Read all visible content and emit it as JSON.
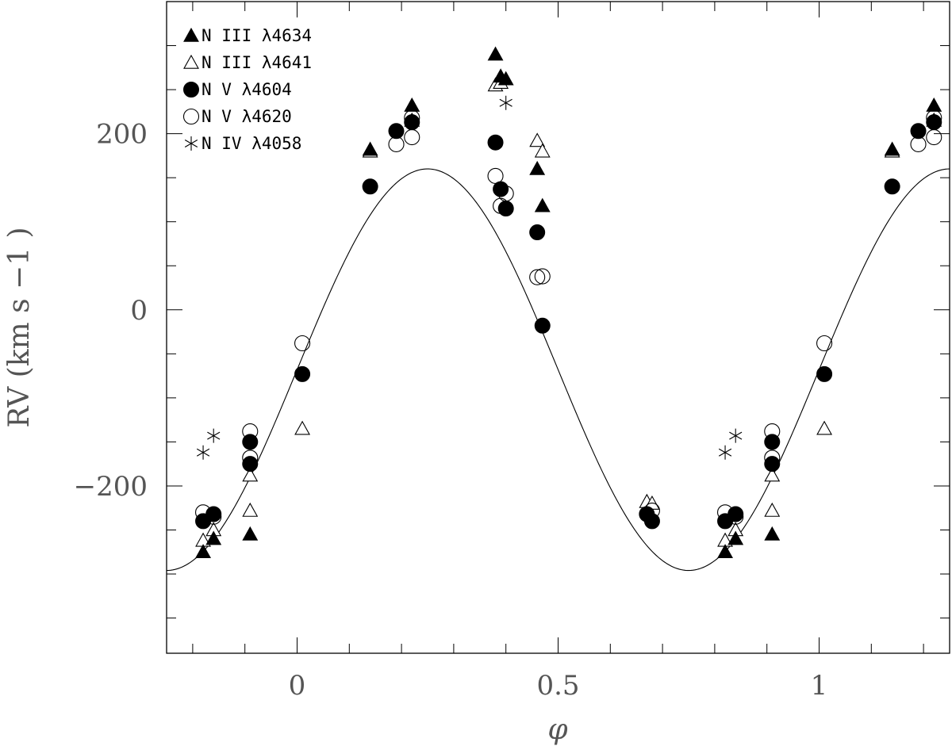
{
  "chart_data": {
    "type": "scatter",
    "xlabel": "φ",
    "ylabel": "RV (km s −1 )",
    "xlim": [
      -0.25,
      1.25
    ],
    "ylim": [
      -390,
      350
    ],
    "x_ticks": [
      0,
      0.5,
      1
    ],
    "x_tick_labels": [
      "0",
      "0.5",
      "1"
    ],
    "y_ticks": [
      -200,
      0,
      200
    ],
    "y_tick_labels": [
      "−200",
      "0",
      "200"
    ],
    "legend_position": "top-left",
    "fit_curve": {
      "gamma": -68,
      "amplitude": 228,
      "phase_of_max": 0.25
    },
    "series": [
      {
        "name": "N III λ4634",
        "marker": "filled-triangle",
        "points": [
          [
            -0.18,
            -275
          ],
          [
            -0.16,
            -260
          ],
          [
            -0.09,
            -255
          ],
          [
            0.14,
            182
          ],
          [
            0.22,
            232
          ],
          [
            0.38,
            290
          ],
          [
            0.39,
            265
          ],
          [
            0.4,
            262
          ],
          [
            0.46,
            160
          ],
          [
            0.47,
            118
          ],
          [
            0.82,
            -275
          ],
          [
            0.84,
            -260
          ],
          [
            0.91,
            -255
          ],
          [
            1.14,
            182
          ],
          [
            1.22,
            232
          ]
        ]
      },
      {
        "name": "N III λ4641",
        "marker": "open-triangle",
        "points": [
          [
            -0.18,
            -262
          ],
          [
            -0.16,
            -250
          ],
          [
            -0.09,
            -228
          ],
          [
            -0.09,
            -188
          ],
          [
            0.01,
            -135
          ],
          [
            0.14,
            180
          ],
          [
            0.22,
            215
          ],
          [
            0.38,
            255
          ],
          [
            0.39,
            258
          ],
          [
            0.46,
            192
          ],
          [
            0.47,
            180
          ],
          [
            0.67,
            -218
          ],
          [
            0.68,
            -220
          ],
          [
            0.82,
            -262
          ],
          [
            0.84,
            -250
          ],
          [
            0.91,
            -228
          ],
          [
            0.91,
            -188
          ],
          [
            1.01,
            -135
          ],
          [
            1.14,
            180
          ],
          [
            1.22,
            215
          ]
        ]
      },
      {
        "name": "N V λ4604",
        "marker": "filled-circle",
        "points": [
          [
            -0.18,
            -240
          ],
          [
            -0.16,
            -232
          ],
          [
            -0.09,
            -150
          ],
          [
            -0.09,
            -175
          ],
          [
            0.01,
            -73
          ],
          [
            0.14,
            140
          ],
          [
            0.19,
            203
          ],
          [
            0.22,
            213
          ],
          [
            0.38,
            190
          ],
          [
            0.39,
            137
          ],
          [
            0.4,
            115
          ],
          [
            0.46,
            88
          ],
          [
            0.47,
            -18
          ],
          [
            0.67,
            -232
          ],
          [
            0.68,
            -240
          ],
          [
            0.82,
            -240
          ],
          [
            0.84,
            -232
          ],
          [
            0.91,
            -150
          ],
          [
            0.91,
            -175
          ],
          [
            1.01,
            -73
          ],
          [
            1.14,
            140
          ],
          [
            1.19,
            203
          ],
          [
            1.22,
            213
          ]
        ]
      },
      {
        "name": "N V λ4620",
        "marker": "open-circle",
        "points": [
          [
            -0.18,
            -230
          ],
          [
            -0.16,
            -235
          ],
          [
            -0.09,
            -138
          ],
          [
            -0.09,
            -168
          ],
          [
            0.01,
            -38
          ],
          [
            0.19,
            188
          ],
          [
            0.22,
            196
          ],
          [
            0.22,
            218
          ],
          [
            0.38,
            152
          ],
          [
            0.39,
            118
          ],
          [
            0.4,
            132
          ],
          [
            0.46,
            37
          ],
          [
            0.47,
            38
          ],
          [
            0.68,
            -228
          ],
          [
            0.82,
            -230
          ],
          [
            0.84,
            -235
          ],
          [
            0.91,
            -138
          ],
          [
            0.91,
            -168
          ],
          [
            1.01,
            -38
          ],
          [
            1.19,
            188
          ],
          [
            1.22,
            196
          ],
          [
            1.22,
            218
          ]
        ]
      },
      {
        "name": "N IV λ4058",
        "marker": "asterisk",
        "points": [
          [
            -0.18,
            -162
          ],
          [
            -0.16,
            -143
          ],
          [
            0.4,
            235
          ],
          [
            0.82,
            -162
          ],
          [
            0.84,
            -143
          ]
        ]
      }
    ]
  }
}
